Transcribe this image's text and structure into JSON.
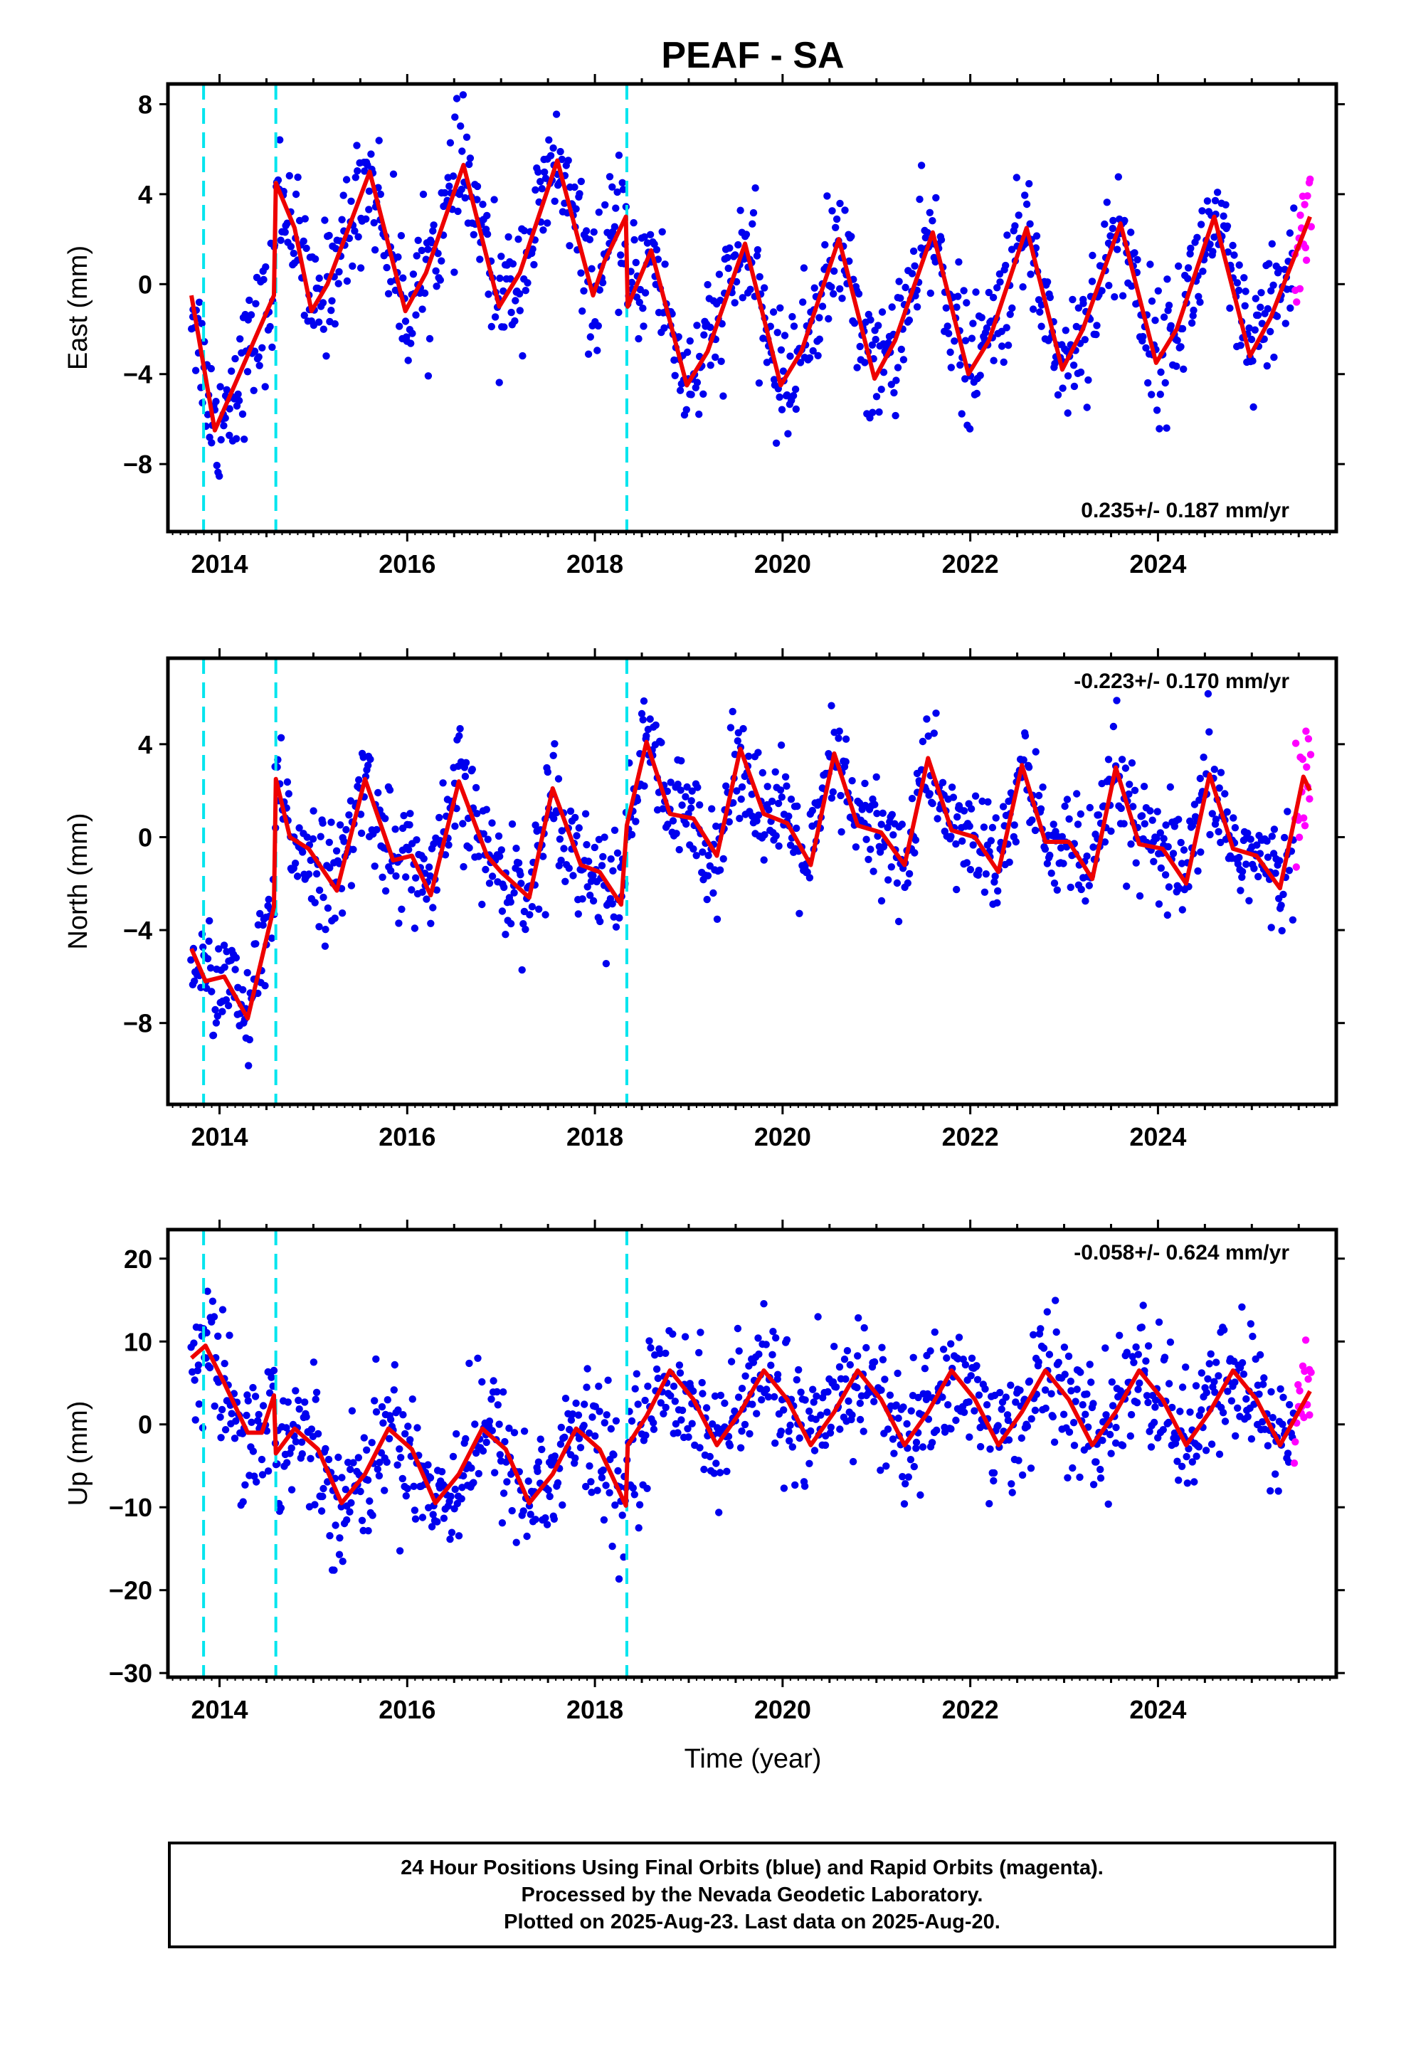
{
  "title": "PEAF - SA",
  "x_axis_label": "Time (year)",
  "footer": {
    "line1": "24 Hour Positions Using Final Orbits (blue) and Rapid Orbits (magenta).",
    "line2": "Processed by the Nevada Geodetic Laboratory.",
    "line3": "Plotted on 2025-Aug-23. Last data on 2025-Aug-20."
  },
  "colors": {
    "final_orbits": "#0000ee",
    "rapid_orbits": "#ff00ff",
    "model_fit": "#ee0000",
    "steps": "#00e5ee"
  },
  "chart_data": [
    {
      "type": "scatter",
      "name": "east",
      "ylabel": "East (mm)",
      "xlim": [
        2013.45,
        2025.9
      ],
      "ylim": [
        -11,
        8.9
      ],
      "yticks": [
        8,
        4,
        0,
        -4,
        -8
      ],
      "ytick_labels": [
        "8",
        "4",
        "0",
        "−4",
        "−8"
      ],
      "xticks": [
        2014,
        2016,
        2018,
        2020,
        2022,
        2024
      ],
      "rate_text": "0.235+/- 0.187 mm/yr",
      "rate_position": "bottom-right",
      "steps": [
        2013.83,
        2014.6,
        2018.34
      ],
      "data_start": 2013.7,
      "data_end": 2025.63,
      "rapid_start": 2025.45,
      "model_curve": [
        [
          2013.7,
          -0.5
        ],
        [
          2013.95,
          -6.5
        ],
        [
          2014.58,
          -0.5
        ],
        [
          2014.6,
          4.5
        ],
        [
          2014.8,
          2.5
        ],
        [
          2014.98,
          -1.2
        ],
        [
          2015.15,
          0.0
        ],
        [
          2015.6,
          5.0
        ],
        [
          2015.98,
          -1.2
        ],
        [
          2016.2,
          0.5
        ],
        [
          2016.6,
          5.3
        ],
        [
          2016.98,
          -1.0
        ],
        [
          2017.2,
          0.5
        ],
        [
          2017.6,
          5.5
        ],
        [
          2017.98,
          -0.5
        ],
        [
          2018.1,
          1.0
        ],
        [
          2018.33,
          3.0
        ],
        [
          2018.35,
          -1.0
        ],
        [
          2018.6,
          1.5
        ],
        [
          2018.98,
          -4.5
        ],
        [
          2019.2,
          -3.0
        ],
        [
          2019.6,
          1.8
        ],
        [
          2019.98,
          -4.5
        ],
        [
          2020.2,
          -3.0
        ],
        [
          2020.6,
          2.0
        ],
        [
          2020.98,
          -4.2
        ],
        [
          2021.2,
          -2.5
        ],
        [
          2021.6,
          2.3
        ],
        [
          2021.98,
          -4.0
        ],
        [
          2022.2,
          -2.5
        ],
        [
          2022.6,
          2.5
        ],
        [
          2022.98,
          -3.8
        ],
        [
          2023.2,
          -2.0
        ],
        [
          2023.6,
          2.7
        ],
        [
          2023.98,
          -3.5
        ],
        [
          2024.2,
          -2.0
        ],
        [
          2024.6,
          3.0
        ],
        [
          2024.98,
          -3.2
        ],
        [
          2025.2,
          -1.5
        ],
        [
          2025.62,
          3.0
        ]
      ]
    },
    {
      "type": "scatter",
      "name": "north",
      "ylabel": "North (mm)",
      "xlim": [
        2013.45,
        2025.9
      ],
      "ylim": [
        -11.5,
        7.7
      ],
      "yticks": [
        4,
        0,
        -4,
        -8
      ],
      "ytick_labels": [
        "4",
        "0",
        "−4",
        "−8"
      ],
      "xticks": [
        2014,
        2016,
        2018,
        2020,
        2022,
        2024
      ],
      "rate_text": "-0.223+/- 0.170 mm/yr",
      "rate_position": "top-right",
      "steps": [
        2013.83,
        2014.6,
        2018.34
      ],
      "data_start": 2013.7,
      "data_end": 2025.63,
      "rapid_start": 2025.45,
      "model_curve": [
        [
          2013.7,
          -4.8
        ],
        [
          2013.85,
          -6.2
        ],
        [
          2014.05,
          -6.0
        ],
        [
          2014.3,
          -7.8
        ],
        [
          2014.58,
          -3.0
        ],
        [
          2014.6,
          2.5
        ],
        [
          2014.75,
          0.0
        ],
        [
          2014.95,
          -0.5
        ],
        [
          2015.25,
          -2.3
        ],
        [
          2015.55,
          2.5
        ],
        [
          2015.85,
          -1.0
        ],
        [
          2016.05,
          -0.8
        ],
        [
          2016.25,
          -2.5
        ],
        [
          2016.55,
          2.4
        ],
        [
          2016.85,
          -0.8
        ],
        [
          2017.0,
          -1.5
        ],
        [
          2017.3,
          -2.6
        ],
        [
          2017.55,
          2.1
        ],
        [
          2017.85,
          -1.2
        ],
        [
          2018.05,
          -1.5
        ],
        [
          2018.28,
          -2.9
        ],
        [
          2018.34,
          0.5
        ],
        [
          2018.55,
          4.1
        ],
        [
          2018.8,
          1.0
        ],
        [
          2019.05,
          0.8
        ],
        [
          2019.3,
          -0.8
        ],
        [
          2019.55,
          3.8
        ],
        [
          2019.8,
          1.0
        ],
        [
          2020.05,
          0.6
        ],
        [
          2020.3,
          -1.2
        ],
        [
          2020.55,
          3.6
        ],
        [
          2020.8,
          0.5
        ],
        [
          2021.05,
          0.2
        ],
        [
          2021.3,
          -1.2
        ],
        [
          2021.55,
          3.4
        ],
        [
          2021.8,
          0.3
        ],
        [
          2022.05,
          0.0
        ],
        [
          2022.3,
          -1.5
        ],
        [
          2022.55,
          3.1
        ],
        [
          2022.8,
          -0.2
        ],
        [
          2023.05,
          -0.2
        ],
        [
          2023.3,
          -1.8
        ],
        [
          2023.55,
          3.0
        ],
        [
          2023.8,
          -0.3
        ],
        [
          2024.05,
          -0.5
        ],
        [
          2024.3,
          -2.0
        ],
        [
          2024.55,
          2.7
        ],
        [
          2024.8,
          -0.5
        ],
        [
          2025.05,
          -0.8
        ],
        [
          2025.3,
          -2.2
        ],
        [
          2025.55,
          2.6
        ],
        [
          2025.62,
          2.0
        ]
      ]
    },
    {
      "type": "scatter",
      "name": "up",
      "ylabel": "Up (mm)",
      "xlim": [
        2013.45,
        2025.9
      ],
      "ylim": [
        -30.5,
        23.5
      ],
      "yticks": [
        20,
        10,
        0,
        -10,
        -20,
        -30
      ],
      "ytick_labels": [
        "20",
        "10",
        "0",
        "−10",
        "−20",
        "−30"
      ],
      "xticks": [
        2014,
        2016,
        2018,
        2020,
        2022,
        2024
      ],
      "rate_text": "-0.058+/- 0.624 mm/yr",
      "rate_position": "top-right",
      "steps": [
        2013.83,
        2014.6,
        2018.34
      ],
      "data_start": 2013.7,
      "data_end": 2025.63,
      "rapid_start": 2025.45,
      "model_curve": [
        [
          2013.7,
          8.0
        ],
        [
          2013.85,
          9.5
        ],
        [
          2014.05,
          5.0
        ],
        [
          2014.3,
          -1.0
        ],
        [
          2014.45,
          -1.0
        ],
        [
          2014.58,
          3.5
        ],
        [
          2014.6,
          -3.5
        ],
        [
          2014.8,
          -0.5
        ],
        [
          2015.05,
          -3.0
        ],
        [
          2015.3,
          -9.5
        ],
        [
          2015.55,
          -6.0
        ],
        [
          2015.8,
          -0.5
        ],
        [
          2016.05,
          -3.0
        ],
        [
          2016.3,
          -9.5
        ],
        [
          2016.55,
          -6.0
        ],
        [
          2016.8,
          -0.5
        ],
        [
          2017.05,
          -3.0
        ],
        [
          2017.3,
          -9.5
        ],
        [
          2017.55,
          -6.0
        ],
        [
          2017.8,
          -0.5
        ],
        [
          2018.05,
          -3.0
        ],
        [
          2018.33,
          -9.8
        ],
        [
          2018.35,
          -2.5
        ],
        [
          2018.55,
          1.0
        ],
        [
          2018.8,
          6.5
        ],
        [
          2019.05,
          3.0
        ],
        [
          2019.3,
          -2.5
        ],
        [
          2019.55,
          1.5
        ],
        [
          2019.8,
          6.5
        ],
        [
          2020.05,
          3.0
        ],
        [
          2020.3,
          -2.5
        ],
        [
          2020.55,
          1.5
        ],
        [
          2020.8,
          6.5
        ],
        [
          2021.05,
          3.0
        ],
        [
          2021.3,
          -2.5
        ],
        [
          2021.55,
          1.5
        ],
        [
          2021.8,
          6.5
        ],
        [
          2022.05,
          3.0
        ],
        [
          2022.3,
          -2.5
        ],
        [
          2022.55,
          1.5
        ],
        [
          2022.8,
          6.5
        ],
        [
          2023.05,
          3.0
        ],
        [
          2023.3,
          -2.5
        ],
        [
          2023.55,
          1.5
        ],
        [
          2023.8,
          6.5
        ],
        [
          2024.05,
          3.0
        ],
        [
          2024.3,
          -2.5
        ],
        [
          2024.55,
          1.5
        ],
        [
          2024.8,
          6.5
        ],
        [
          2025.05,
          3.0
        ],
        [
          2025.3,
          -2.5
        ],
        [
          2025.62,
          4.0
        ]
      ]
    }
  ]
}
